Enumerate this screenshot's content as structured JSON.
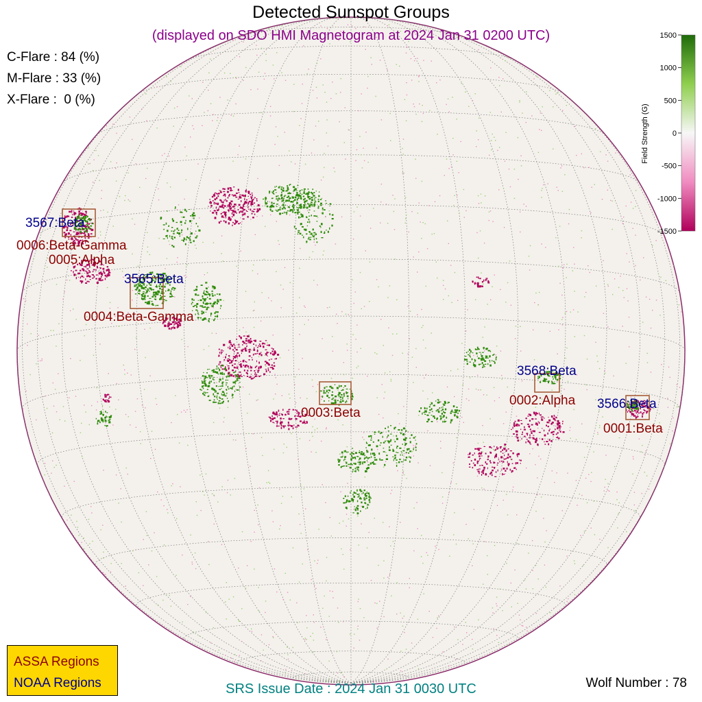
{
  "header": {
    "title": "Detected Sunspot Groups",
    "subtitle": "(displayed on SDO HMI Magnetogram at 2024 Jan 31 0200 UTC)"
  },
  "flare_probabilities": {
    "c_flare": "C-Flare : 84 (%)",
    "m_flare": "M-Flare : 33 (%)",
    "x_flare": "X-Flare :  0 (%)"
  },
  "colorbar": {
    "label": "Field Strength (G)",
    "ticks": [
      "1500",
      "1000",
      "500",
      "0",
      "-500",
      "-1000",
      "-1500"
    ],
    "range": [
      -1500,
      1500
    ],
    "positive_color": "#2e7d0a",
    "negative_color": "#b0005a"
  },
  "regions": {
    "noaa": [
      {
        "label": "3567:Beta"
      },
      {
        "label": "3565:Beta"
      },
      {
        "label": "3568:Beta"
      },
      {
        "label": "3566:Beta"
      }
    ],
    "assa": [
      {
        "label": "0006:Beta-Gamma"
      },
      {
        "label": "0005:Alpha"
      },
      {
        "label": "0004:Beta-Gamma"
      },
      {
        "label": "0003:Beta"
      },
      {
        "label": "0002:Alpha"
      },
      {
        "label": "0001:Beta"
      }
    ]
  },
  "legend": {
    "assa_label": "ASSA Regions",
    "noaa_label": "NOAA Regions",
    "background": "#ffd700"
  },
  "footer": {
    "srs_issue": "SRS Issue Date : 2024 Jan 31 0030 UTC",
    "wolf_number": "Wolf Number : 78"
  }
}
